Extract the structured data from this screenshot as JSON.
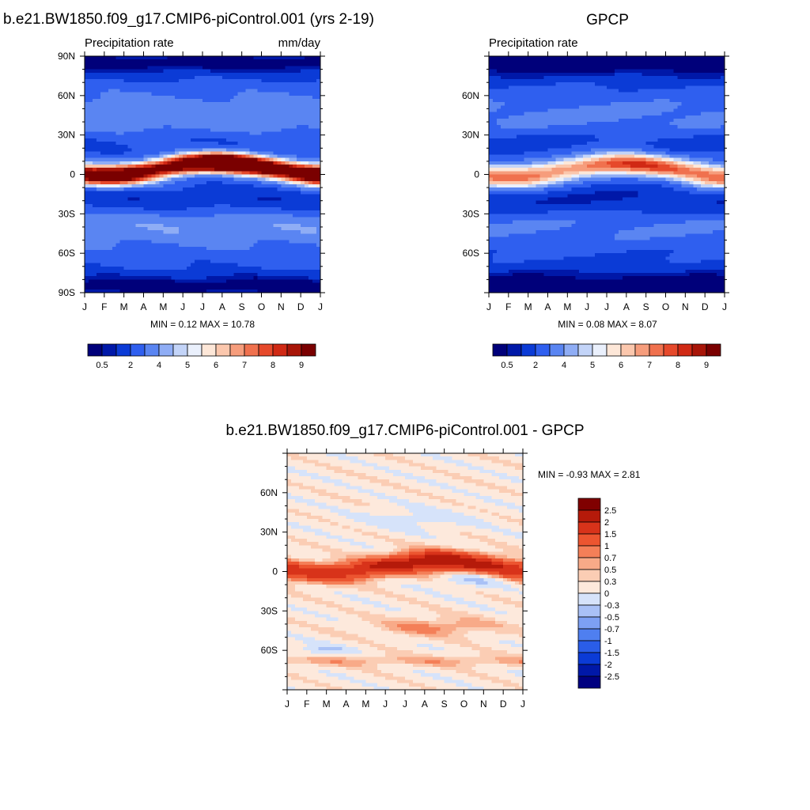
{
  "chart_data": [
    {
      "type": "heatmap",
      "title": "b.e21.BW1850.f09_g17.CMIP6-piControl.001 (yrs 2-19)",
      "subtitle_left": "Precipitation rate",
      "subtitle_right": "mm/day",
      "stats": "MIN =   0.12 MAX =  10.78",
      "x_months": [
        "J",
        "F",
        "M",
        "A",
        "M",
        "J",
        "J",
        "A",
        "S",
        "O",
        "N",
        "D",
        "J"
      ],
      "y_ticks": [
        90,
        60,
        30,
        0,
        -30,
        -60,
        -90
      ],
      "y_tick_labels": [
        "90N",
        "60N",
        "30N",
        "0",
        "30S",
        "60S",
        "90S"
      ],
      "xlim": [
        0,
        12
      ],
      "ylim": [
        -90,
        90
      ],
      "field": "model",
      "colorbar": {
        "orientation": "horizontal",
        "levels": [
          0.5,
          1,
          2,
          3,
          4,
          4.5,
          5,
          5.5,
          6,
          6.5,
          7,
          7.5,
          8,
          8.5,
          9
        ],
        "labels": [
          "0.5",
          "2",
          "4",
          "5",
          "6",
          "7",
          "8",
          "9"
        ],
        "colors": [
          "#00007a",
          "#0018a8",
          "#0b3bd6",
          "#2f5fef",
          "#5a85f2",
          "#8fadf5",
          "#c3d4f8",
          "#eaf0fc",
          "#fde7d8",
          "#fbc7ad",
          "#f69d7c",
          "#f0714e",
          "#e6492b",
          "#d02914",
          "#a81508",
          "#7a0000"
        ]
      }
    },
    {
      "type": "heatmap",
      "title": "GPCP",
      "subtitle_left": "Precipitation rate",
      "subtitle_right": "",
      "stats": "MIN =   0.08 MAX =   8.07",
      "x_months": [
        "J",
        "F",
        "M",
        "A",
        "M",
        "J",
        "J",
        "A",
        "S",
        "O",
        "N",
        "D",
        "J"
      ],
      "y_ticks": [
        60,
        30,
        0,
        -30,
        -60
      ],
      "y_tick_labels": [
        "60N",
        "30N",
        "0",
        "30S",
        "60S"
      ],
      "xlim": [
        0,
        12
      ],
      "ylim": [
        -90,
        90
      ],
      "field": "obs",
      "colorbar": {
        "orientation": "horizontal",
        "levels": [
          0.5,
          1,
          2,
          3,
          4,
          4.5,
          5,
          5.5,
          6,
          6.5,
          7,
          7.5,
          8,
          8.5,
          9
        ],
        "labels": [
          "0.5",
          "2",
          "4",
          "5",
          "6",
          "7",
          "8",
          "9"
        ],
        "colors": [
          "#00007a",
          "#0018a8",
          "#0b3bd6",
          "#2f5fef",
          "#5a85f2",
          "#8fadf5",
          "#c3d4f8",
          "#eaf0fc",
          "#fde7d8",
          "#fbc7ad",
          "#f69d7c",
          "#f0714e",
          "#e6492b",
          "#d02914",
          "#a81508",
          "#7a0000"
        ]
      }
    },
    {
      "type": "heatmap",
      "title": "b.e21.BW1850.f09_g17.CMIP6-piControl.001 - GPCP",
      "subtitle_left": "",
      "subtitle_right": "",
      "stats": "MIN =  -0.93 MAX =   2.81",
      "x_months": [
        "J",
        "F",
        "M",
        "A",
        "M",
        "J",
        "J",
        "A",
        "S",
        "O",
        "N",
        "D",
        "J"
      ],
      "y_ticks": [
        60,
        30,
        0,
        -30,
        -60
      ],
      "y_tick_labels": [
        "60N",
        "30N",
        "0",
        "30S",
        "60S"
      ],
      "xlim": [
        0,
        12
      ],
      "ylim": [
        -90,
        90
      ],
      "field": "diff",
      "colorbar": {
        "orientation": "vertical",
        "levels": [
          -2.5,
          -2,
          -1.5,
          -1,
          -0.7,
          -0.5,
          -0.3,
          0,
          0.3,
          0.5,
          0.7,
          1,
          1.5,
          2,
          2.5
        ],
        "labels": [
          "-2.5",
          "-2",
          "-1.5",
          "-1",
          "-0.7",
          "-0.5",
          "-0.3",
          "0",
          "0.3",
          "0.5",
          "0.7",
          "1",
          "1.5",
          "2",
          "2.5"
        ],
        "colors": [
          "#000080",
          "#0018a8",
          "#0b3bd6",
          "#2a5de8",
          "#4f7ff0",
          "#7da0f3",
          "#a9c1f6",
          "#d6e3fa",
          "#fde9dc",
          "#fbcdb4",
          "#f8aa88",
          "#f47f58",
          "#ec5530",
          "#d8331a",
          "#b51a0a",
          "#800000"
        ]
      }
    }
  ]
}
